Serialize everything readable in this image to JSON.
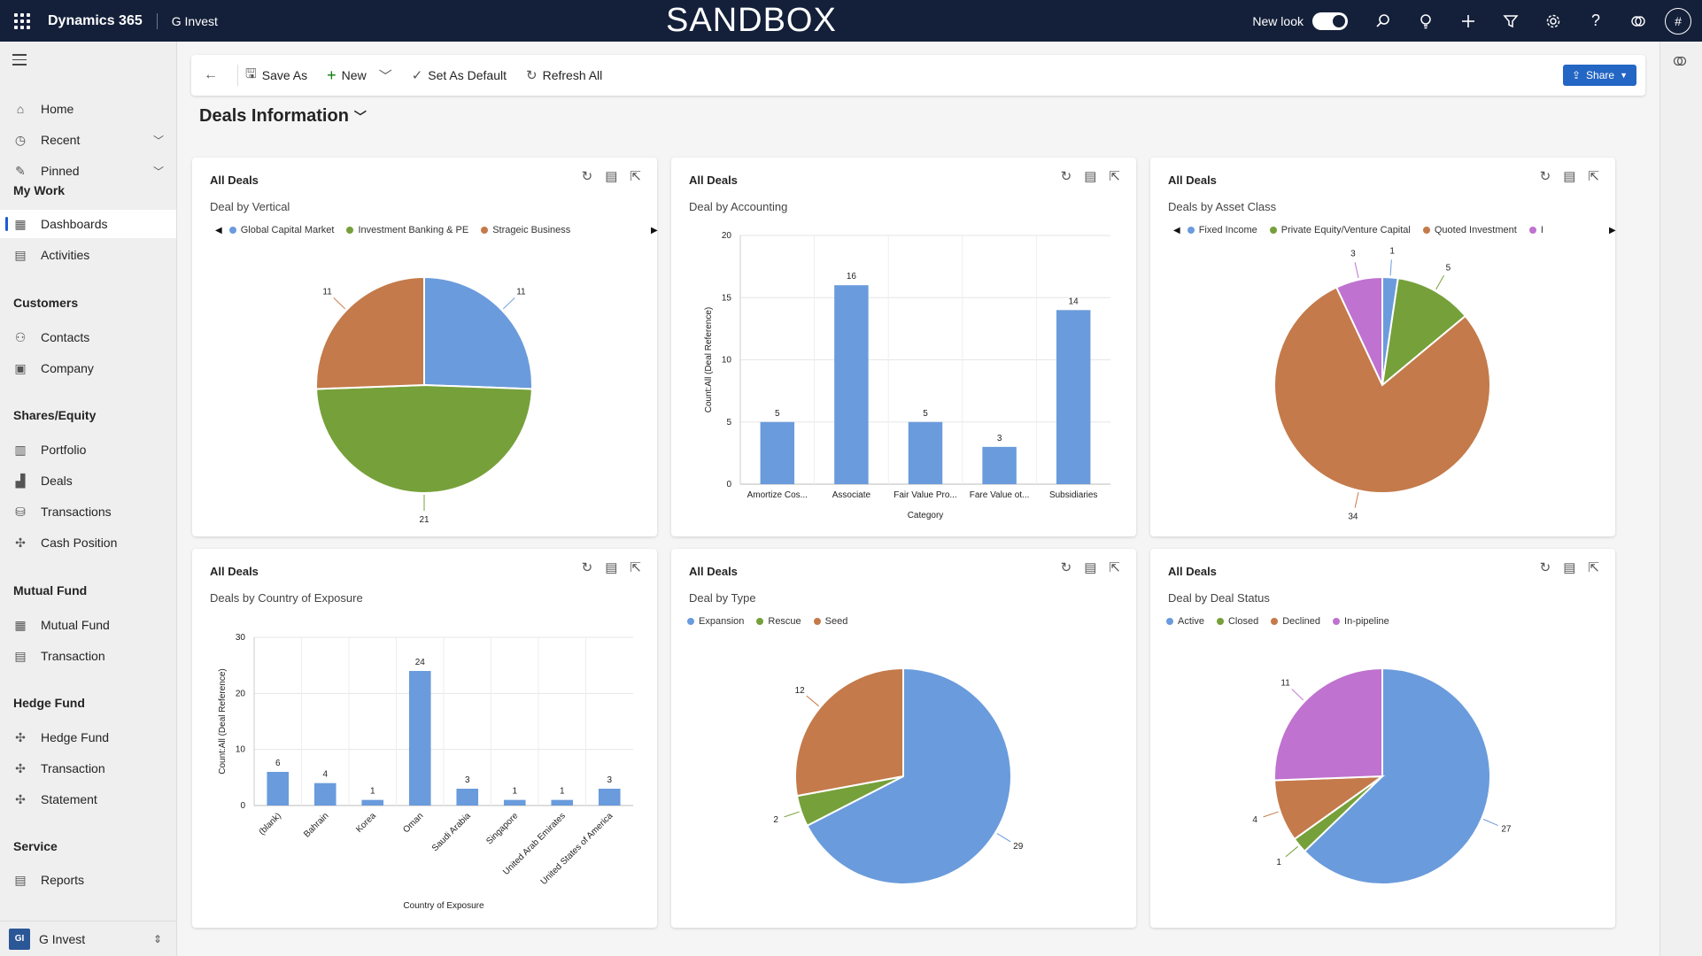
{
  "topbar": {
    "brand": "Dynamics 365",
    "app_name": "G Invest",
    "environment_banner": "SANDBOX",
    "new_look_label": "New look",
    "avatar_initial": "#"
  },
  "sidebar": {
    "items_top": [
      {
        "label": "Home",
        "icon": "home-icon"
      },
      {
        "label": "Recent",
        "icon": "clock-icon"
      },
      {
        "label": "Pinned",
        "icon": "pin-icon"
      }
    ],
    "groups": [
      {
        "title": "My Work",
        "items": [
          {
            "label": "Dashboards",
            "icon": "dashboard-icon",
            "active": true
          },
          {
            "label": "Activities",
            "icon": "clipboard-icon"
          }
        ]
      },
      {
        "title": "Customers",
        "items": [
          {
            "label": "Contacts",
            "icon": "person-icon"
          },
          {
            "label": "Company",
            "icon": "building-icon"
          }
        ]
      },
      {
        "title": "Shares/Equity",
        "items": [
          {
            "label": "Portfolio",
            "icon": "portfolio-icon"
          },
          {
            "label": "Deals",
            "icon": "deals-icon"
          },
          {
            "label": "Transactions",
            "icon": "transactions-icon"
          },
          {
            "label": "Cash Position",
            "icon": "puzzle-icon"
          }
        ]
      },
      {
        "title": "Mutual Fund",
        "items": [
          {
            "label": "Mutual Fund",
            "icon": "fund-icon"
          },
          {
            "label": "Transaction",
            "icon": "document-icon"
          }
        ]
      },
      {
        "title": "Hedge Fund",
        "items": [
          {
            "label": "Hedge Fund",
            "icon": "puzzle-icon"
          },
          {
            "label": "Transaction",
            "icon": "puzzle-icon"
          },
          {
            "label": "Statement",
            "icon": "puzzle-icon"
          }
        ]
      },
      {
        "title": "Service",
        "items": [
          {
            "label": "Reports",
            "icon": "report-icon"
          }
        ]
      }
    ],
    "footer": {
      "badge": "GI",
      "label": "G Invest"
    }
  },
  "commandbar": {
    "save_as": "Save As",
    "new": "New",
    "set_default": "Set As Default",
    "refresh_all": "Refresh All",
    "share": "Share"
  },
  "dashboard": {
    "title": "Deals Information"
  },
  "panels": [
    {
      "view": "All Deals",
      "title": "Deal by Vertical"
    },
    {
      "view": "All Deals",
      "title": "Deal by Accounting"
    },
    {
      "view": "All Deals",
      "title": "Deals by Asset Class"
    },
    {
      "view": "All Deals",
      "title": "Deals by Country of Exposure"
    },
    {
      "view": "All Deals",
      "title": "Deal by Type"
    },
    {
      "view": "All Deals",
      "title": "Deal by Deal Status"
    }
  ],
  "colors": {
    "blue": "#6a9bdc",
    "green": "#76a03a",
    "orange": "#c47a4a",
    "purple": "#bf72cf",
    "topbar": "#14203a",
    "share": "#2366c4"
  },
  "chart_data": [
    {
      "type": "pie",
      "title": "Deal by Vertical",
      "legend": [
        "Global Capital Market",
        "Investment Banking & PE",
        "Strageic Business"
      ],
      "values": [
        11,
        21,
        11
      ],
      "colors": [
        "#6a9bdc",
        "#76a03a",
        "#c47a4a"
      ]
    },
    {
      "type": "bar",
      "title": "Deal by Accounting",
      "categories": [
        "Amortize Cos...",
        "Associate",
        "Fair Value Pro...",
        "Fare Value ot...",
        "Subsidiaries"
      ],
      "values": [
        5,
        16,
        5,
        3,
        14
      ],
      "xlabel": "Category",
      "ylabel": "Count:All (Deal Reference)",
      "ylim": [
        0,
        20
      ],
      "yticks": [
        0,
        5,
        10,
        15,
        20
      ],
      "color": "#6a9bdc"
    },
    {
      "type": "pie",
      "title": "Deals by Asset Class",
      "legend": [
        "Fixed Income",
        "Private Equity/Venture Capital",
        "Quoted Investment",
        "I"
      ],
      "values": [
        1,
        5,
        34,
        3
      ],
      "colors": [
        "#6a9bdc",
        "#76a03a",
        "#c47a4a",
        "#bf72cf"
      ]
    },
    {
      "type": "bar",
      "title": "Deals by Country of Exposure",
      "categories": [
        "(blank)",
        "Bahrain",
        "Korea",
        "Oman",
        "Saudi Arabia",
        "Singapore",
        "United Arab Emirates",
        "United States of America"
      ],
      "values": [
        6,
        4,
        1,
        24,
        3,
        1,
        1,
        3
      ],
      "xlabel": "Country of Exposure",
      "ylabel": "Count:All (Deal Reference)",
      "ylim": [
        0,
        30
      ],
      "yticks": [
        0,
        10,
        20,
        30
      ],
      "color": "#6a9bdc"
    },
    {
      "type": "pie",
      "title": "Deal by Type",
      "legend": [
        "Expansion",
        "Rescue",
        "Seed"
      ],
      "values": [
        29,
        2,
        12
      ],
      "colors": [
        "#6a9bdc",
        "#76a03a",
        "#c47a4a"
      ]
    },
    {
      "type": "pie",
      "title": "Deal by Deal Status",
      "legend": [
        "Active",
        "Closed",
        "Declined",
        "In-pipeline"
      ],
      "values": [
        27,
        1,
        4,
        11
      ],
      "colors": [
        "#6a9bdc",
        "#76a03a",
        "#c47a4a",
        "#bf72cf"
      ]
    }
  ]
}
